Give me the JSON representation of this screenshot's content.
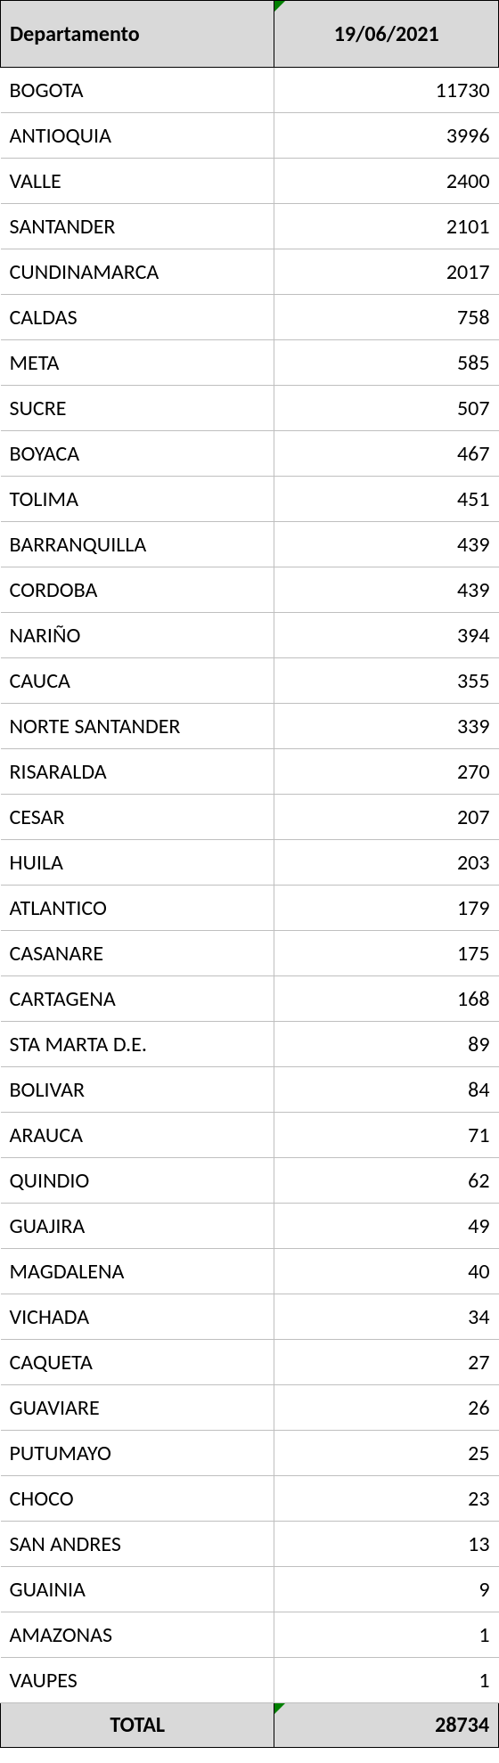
{
  "table": {
    "columns": [
      "Departamento",
      "19/06/2021"
    ],
    "rows": [
      {
        "name": "BOGOTA",
        "value": "11730"
      },
      {
        "name": "ANTIOQUIA",
        "value": "3996"
      },
      {
        "name": "VALLE",
        "value": "2400"
      },
      {
        "name": "SANTANDER",
        "value": "2101"
      },
      {
        "name": "CUNDINAMARCA",
        "value": "2017"
      },
      {
        "name": "CALDAS",
        "value": "758"
      },
      {
        "name": "META",
        "value": "585"
      },
      {
        "name": "SUCRE",
        "value": "507"
      },
      {
        "name": "BOYACA",
        "value": "467"
      },
      {
        "name": "TOLIMA",
        "value": "451"
      },
      {
        "name": "BARRANQUILLA",
        "value": "439"
      },
      {
        "name": "CORDOBA",
        "value": "439"
      },
      {
        "name": "NARIÑO",
        "value": "394"
      },
      {
        "name": "CAUCA",
        "value": "355"
      },
      {
        "name": "NORTE SANTANDER",
        "value": "339"
      },
      {
        "name": "RISARALDA",
        "value": "270"
      },
      {
        "name": "CESAR",
        "value": "207"
      },
      {
        "name": "HUILA",
        "value": "203"
      },
      {
        "name": "ATLANTICO",
        "value": "179"
      },
      {
        "name": "CASANARE",
        "value": "175"
      },
      {
        "name": "CARTAGENA",
        "value": "168"
      },
      {
        "name": "STA MARTA D.E.",
        "value": "89"
      },
      {
        "name": "BOLIVAR",
        "value": "84"
      },
      {
        "name": "ARAUCA",
        "value": "71"
      },
      {
        "name": "QUINDIO",
        "value": "62"
      },
      {
        "name": "GUAJIRA",
        "value": "49"
      },
      {
        "name": "MAGDALENA",
        "value": "40"
      },
      {
        "name": "VICHADA",
        "value": "34"
      },
      {
        "name": "CAQUETA",
        "value": "27"
      },
      {
        "name": "GUAVIARE",
        "value": "26"
      },
      {
        "name": "PUTUMAYO",
        "value": "25"
      },
      {
        "name": "CHOCO",
        "value": "23"
      },
      {
        "name": "SAN ANDRES",
        "value": "13"
      },
      {
        "name": "GUAINIA",
        "value": "9"
      },
      {
        "name": "AMAZONAS",
        "value": "1"
      },
      {
        "name": "VAUPES",
        "value": "1"
      }
    ],
    "footer": {
      "label": "TOTAL",
      "value": "28734"
    },
    "header_bg": "#d9d9d9",
    "footer_bg": "#d9d9d9",
    "border_color": "#000000",
    "grid_color": "#bfbfbf",
    "triangle_color": "#008000",
    "font_family": "Calibri",
    "font_size": 24
  }
}
